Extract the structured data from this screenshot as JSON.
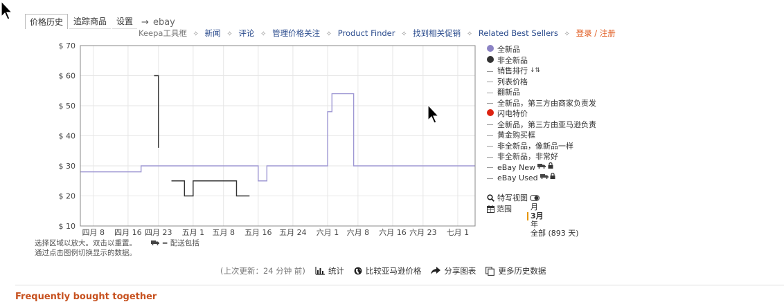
{
  "tabs": {
    "price_history": "价格历史",
    "tracking": "追踪商品",
    "settings": "设置",
    "arrow": "→",
    "ebay": "ebay"
  },
  "toolbar": {
    "toolbox": "Keepa工具框",
    "news": "新闻",
    "reviews": "评论",
    "manage": "管理价格关注",
    "finder": "Product Finder",
    "deals": "找到相关促销",
    "best_sellers": "Related Best Sellers",
    "login": "登录",
    "slash": "/",
    "register": "注册",
    "sep": "✧"
  },
  "legend": {
    "items": [
      {
        "label": "全新品",
        "marker": "dot",
        "color": "#8b83c4"
      },
      {
        "label": "非全新品",
        "marker": "dot",
        "color": "#333333"
      },
      {
        "label": "销售排行",
        "marker": "dash",
        "extra": "sort-icon"
      },
      {
        "label": "列表价格",
        "marker": "dash"
      },
      {
        "label": "翻新品",
        "marker": "dash"
      },
      {
        "label": "全新品，第三方由商家负责发",
        "marker": "dash"
      },
      {
        "label": "闪电特价",
        "marker": "dot",
        "color": "#dd2211"
      },
      {
        "label": "全新品，第三方由亚马逊负责",
        "marker": "dash"
      },
      {
        "label": "黄金购买框",
        "marker": "dash"
      },
      {
        "label": "非全新品，像新品一样",
        "marker": "dash"
      },
      {
        "label": "非全新品，非常好",
        "marker": "dash"
      },
      {
        "label": "eBay New",
        "marker": "dash",
        "extra": "truck-lock"
      },
      {
        "label": "eBay Used",
        "marker": "dash",
        "extra": "truck-lock"
      }
    ],
    "zoom_label": "特写视图",
    "range_label": "范围",
    "range_options": [
      "月",
      "3月",
      "年",
      "全部 (893 天)"
    ],
    "range_selected": "3月"
  },
  "hint": {
    "line1": "选择区域以放大。双击以重置。",
    "shipping": "= 配送包括",
    "line2": "通过点击图例切换显示的数据。"
  },
  "footer": {
    "updated": "(上次更新：24 分钟 前)",
    "stats": "统计",
    "compare": "比较亚马逊价格",
    "share": "分享图表",
    "more": "更多历史数据"
  },
  "section_heading": "Frequently bought together",
  "chart_data": {
    "type": "line",
    "y_ticks": [
      "$ 10",
      "$ 20",
      "$ 30",
      "$ 40",
      "$ 50",
      "$ 60",
      "$ 70"
    ],
    "ylim": [
      10,
      70
    ],
    "x_ticks": [
      "四月 8",
      "四月 16",
      "四月 23",
      "五月 1",
      "五月 8",
      "五月 16",
      "五月 24",
      "六月 1",
      "六月 8",
      "六月 16",
      "六月 23",
      "七月 1"
    ],
    "xlim": [
      "2017-04-05",
      "2017-07-05"
    ],
    "grid": true,
    "series": [
      {
        "name": "全新品",
        "color": "#9e97d3",
        "step": true,
        "x": [
          "2017-04-05",
          "2017-04-19",
          "2017-04-26",
          "2017-05-16",
          "2017-05-18",
          "2017-06-01",
          "2017-06-02",
          "2017-06-07",
          "2017-07-05"
        ],
        "y": [
          28,
          30,
          30,
          25,
          30,
          48,
          54,
          30,
          30
        ]
      },
      {
        "name": "非全新品",
        "color": "#333333",
        "step": true,
        "segments": [
          {
            "x": [
              "2017-04-22",
              "2017-04-23"
            ],
            "y": [
              60,
              36
            ]
          },
          {
            "x": [
              "2017-04-26",
              "2017-04-29",
              "2017-04-29",
              "2017-05-01",
              "2017-05-11",
              "2017-05-11",
              "2017-05-14"
            ],
            "y": [
              25,
              25,
              20,
              25,
              25,
              20,
              20
            ]
          }
        ]
      }
    ]
  }
}
